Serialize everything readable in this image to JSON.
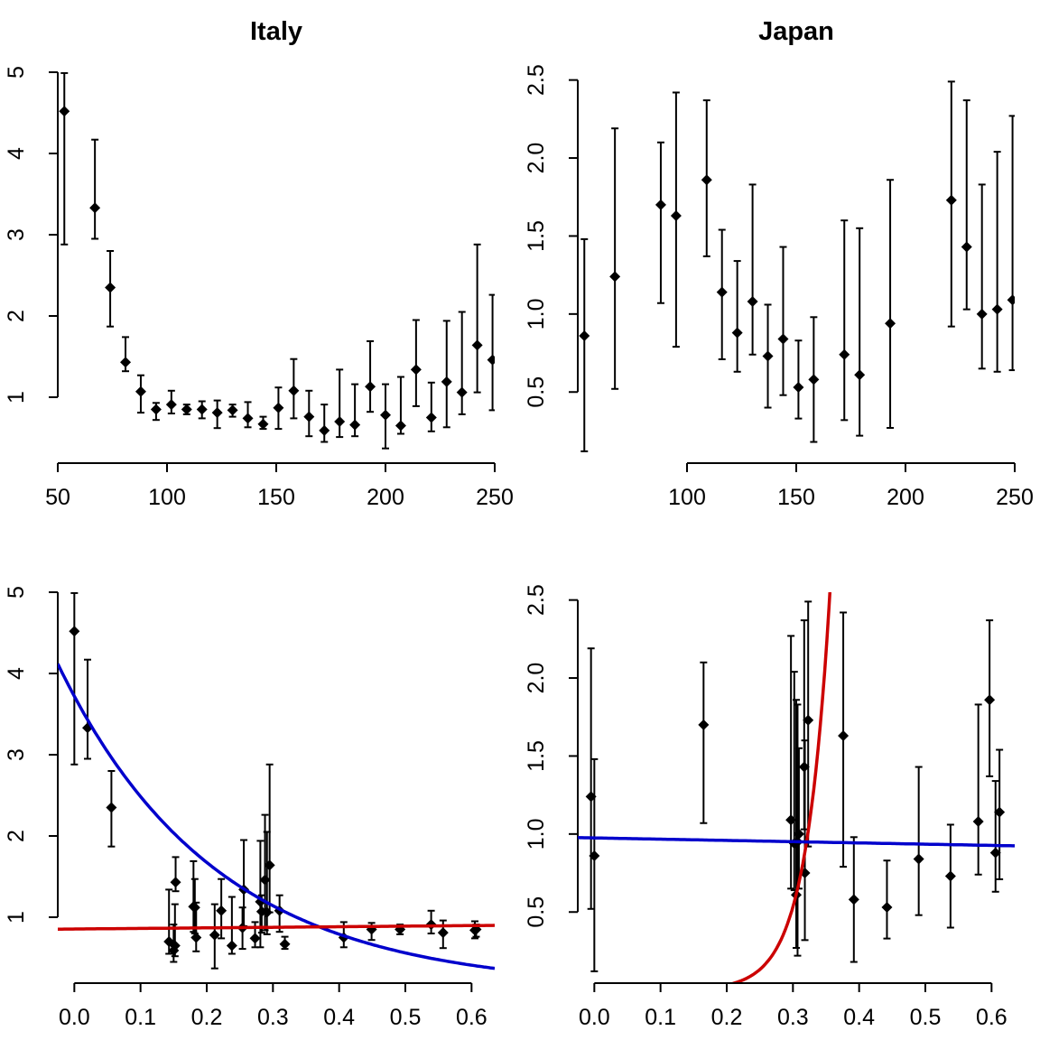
{
  "chart_data": [
    {
      "type": "scatter",
      "title": "Italy",
      "xlim": [
        50,
        250
      ],
      "ylim": [
        0.2,
        5.0
      ],
      "x_ticks": [
        50,
        100,
        150,
        200,
        250
      ],
      "x_tick_labels": [
        "50",
        "100",
        "150",
        "200",
        "250"
      ],
      "y_ticks": [
        1,
        2,
        3,
        4,
        5
      ],
      "y_tick_labels": [
        "1",
        "2",
        "3",
        "4",
        "5"
      ],
      "error_bars": true,
      "points": [
        {
          "x": 53,
          "y": 4.52,
          "lo": 2.88,
          "hi": 4.99
        },
        {
          "x": 67,
          "y": 3.33,
          "lo": 2.95,
          "hi": 4.17
        },
        {
          "x": 74,
          "y": 2.35,
          "lo": 1.87,
          "hi": 2.8
        },
        {
          "x": 81,
          "y": 1.43,
          "lo": 1.32,
          "hi": 1.74
        },
        {
          "x": 88,
          "y": 1.07,
          "lo": 0.81,
          "hi": 1.27
        },
        {
          "x": 95,
          "y": 0.85,
          "lo": 0.72,
          "hi": 0.93
        },
        {
          "x": 102,
          "y": 0.91,
          "lo": 0.8,
          "hi": 1.08
        },
        {
          "x": 109,
          "y": 0.85,
          "lo": 0.79,
          "hi": 0.91
        },
        {
          "x": 116,
          "y": 0.85,
          "lo": 0.74,
          "hi": 0.95
        },
        {
          "x": 123,
          "y": 0.81,
          "lo": 0.62,
          "hi": 0.96
        },
        {
          "x": 130,
          "y": 0.84,
          "lo": 0.76,
          "hi": 0.91
        },
        {
          "x": 137,
          "y": 0.74,
          "lo": 0.63,
          "hi": 0.94
        },
        {
          "x": 144,
          "y": 0.67,
          "lo": 0.61,
          "hi": 0.76
        },
        {
          "x": 151,
          "y": 0.87,
          "lo": 0.61,
          "hi": 1.12
        },
        {
          "x": 158,
          "y": 1.08,
          "lo": 0.74,
          "hi": 1.47
        },
        {
          "x": 165,
          "y": 0.76,
          "lo": 0.52,
          "hi": 1.08
        },
        {
          "x": 172,
          "y": 0.59,
          "lo": 0.45,
          "hi": 0.91
        },
        {
          "x": 179,
          "y": 0.7,
          "lo": 0.51,
          "hi": 1.34
        },
        {
          "x": 186,
          "y": 0.66,
          "lo": 0.52,
          "hi": 1.16
        },
        {
          "x": 193,
          "y": 1.13,
          "lo": 0.82,
          "hi": 1.69
        },
        {
          "x": 200,
          "y": 0.78,
          "lo": 0.37,
          "hi": 1.16
        },
        {
          "x": 207,
          "y": 0.65,
          "lo": 0.55,
          "hi": 1.25
        },
        {
          "x": 214,
          "y": 1.34,
          "lo": 0.89,
          "hi": 1.95
        },
        {
          "x": 221,
          "y": 0.75,
          "lo": 0.58,
          "hi": 1.18
        },
        {
          "x": 228,
          "y": 1.19,
          "lo": 0.63,
          "hi": 1.94
        },
        {
          "x": 235,
          "y": 1.06,
          "lo": 0.79,
          "hi": 2.05
        },
        {
          "x": 242,
          "y": 1.64,
          "lo": 1.06,
          "hi": 2.88
        },
        {
          "x": 249,
          "y": 1.46,
          "lo": 0.84,
          "hi": 2.26
        }
      ],
      "curves": []
    },
    {
      "type": "scatter",
      "title": "Japan",
      "xlim": [
        50,
        250
      ],
      "ylim": [
        0.05,
        2.55
      ],
      "x_ticks": [
        100,
        150,
        200,
        250
      ],
      "x_tick_labels": [
        "100",
        "150",
        "200",
        "250"
      ],
      "y_ticks": [
        0.5,
        1.0,
        1.5,
        2.0,
        2.5
      ],
      "y_tick_labels": [
        "0.5",
        "1.0",
        "1.5",
        "2.0",
        "2.5"
      ],
      "error_bars": true,
      "points": [
        {
          "x": 53,
          "y": 0.86,
          "lo": 0.12,
          "hi": 1.48
        },
        {
          "x": 67,
          "y": 1.24,
          "lo": 0.52,
          "hi": 2.19
        },
        {
          "x": 88,
          "y": 1.7,
          "lo": 1.07,
          "hi": 2.1
        },
        {
          "x": 95,
          "y": 1.63,
          "lo": 0.79,
          "hi": 2.42
        },
        {
          "x": 109,
          "y": 1.86,
          "lo": 1.37,
          "hi": 2.37
        },
        {
          "x": 116,
          "y": 1.14,
          "lo": 0.71,
          "hi": 1.54
        },
        {
          "x": 123,
          "y": 0.88,
          "lo": 0.63,
          "hi": 1.34
        },
        {
          "x": 130,
          "y": 1.08,
          "lo": 0.74,
          "hi": 1.83
        },
        {
          "x": 137,
          "y": 0.73,
          "lo": 0.4,
          "hi": 1.06
        },
        {
          "x": 144,
          "y": 0.84,
          "lo": 0.48,
          "hi": 1.43
        },
        {
          "x": 151,
          "y": 0.53,
          "lo": 0.33,
          "hi": 0.83
        },
        {
          "x": 158,
          "y": 0.58,
          "lo": 0.18,
          "hi": 0.98
        },
        {
          "x": 172,
          "y": 0.74,
          "lo": 0.32,
          "hi": 1.6
        },
        {
          "x": 179,
          "y": 0.61,
          "lo": 0.22,
          "hi": 1.55
        },
        {
          "x": 193,
          "y": 0.94,
          "lo": 0.27,
          "hi": 1.86
        },
        {
          "x": 221,
          "y": 1.73,
          "lo": 0.92,
          "hi": 2.49
        },
        {
          "x": 228,
          "y": 1.43,
          "lo": 1.03,
          "hi": 2.37
        },
        {
          "x": 235,
          "y": 1.0,
          "lo": 0.65,
          "hi": 1.83
        },
        {
          "x": 242,
          "y": 1.03,
          "lo": 0.63,
          "hi": 2.04
        },
        {
          "x": 249,
          "y": 1.09,
          "lo": 0.64,
          "hi": 2.27
        }
      ],
      "curves": []
    },
    {
      "type": "scatter",
      "title": "",
      "xlim": [
        -0.025,
        0.635
      ],
      "ylim": [
        0.2,
        5.0
      ],
      "x_ticks": [
        0.0,
        0.1,
        0.2,
        0.3,
        0.4,
        0.5,
        0.6
      ],
      "x_tick_labels": [
        "0.0",
        "0.1",
        "0.2",
        "0.3",
        "0.4",
        "0.5",
        "0.6"
      ],
      "y_ticks": [
        1,
        2,
        3,
        4,
        5
      ],
      "y_tick_labels": [
        "1",
        "2",
        "3",
        "4",
        "5"
      ],
      "error_bars": true,
      "points": [
        {
          "x": 0.0,
          "y": 4.52,
          "lo": 2.88,
          "hi": 4.99
        },
        {
          "x": 0.02,
          "y": 3.33,
          "lo": 2.95,
          "hi": 4.17
        },
        {
          "x": 0.056,
          "y": 2.35,
          "lo": 1.87,
          "hi": 2.8
        },
        {
          "x": 0.143,
          "y": 0.7,
          "lo": 0.55,
          "hi": 1.34
        },
        {
          "x": 0.15,
          "y": 0.59,
          "lo": 0.45,
          "hi": 0.91
        },
        {
          "x": 0.152,
          "y": 0.65,
          "lo": 0.52,
          "hi": 1.16
        },
        {
          "x": 0.153,
          "y": 1.43,
          "lo": 1.32,
          "hi": 1.74
        },
        {
          "x": 0.18,
          "y": 1.13,
          "lo": 0.82,
          "hi": 1.69
        },
        {
          "x": 0.182,
          "y": 1.12,
          "lo": 0.8,
          "hi": 1.47
        },
        {
          "x": 0.184,
          "y": 0.75,
          "lo": 0.58,
          "hi": 1.18
        },
        {
          "x": 0.212,
          "y": 0.78,
          "lo": 0.37,
          "hi": 1.16
        },
        {
          "x": 0.222,
          "y": 1.08,
          "lo": 0.74,
          "hi": 1.47
        },
        {
          "x": 0.238,
          "y": 0.65,
          "lo": 0.55,
          "hi": 1.25
        },
        {
          "x": 0.254,
          "y": 0.87,
          "lo": 0.61,
          "hi": 1.12
        },
        {
          "x": 0.256,
          "y": 1.34,
          "lo": 0.89,
          "hi": 1.95
        },
        {
          "x": 0.273,
          "y": 0.74,
          "lo": 0.63,
          "hi": 0.94
        },
        {
          "x": 0.281,
          "y": 1.19,
          "lo": 0.63,
          "hi": 1.94
        },
        {
          "x": 0.283,
          "y": 1.07,
          "lo": 0.81,
          "hi": 1.27
        },
        {
          "x": 0.288,
          "y": 1.46,
          "lo": 0.84,
          "hi": 2.26
        },
        {
          "x": 0.291,
          "y": 1.06,
          "lo": 0.79,
          "hi": 2.05
        },
        {
          "x": 0.295,
          "y": 1.64,
          "lo": 1.06,
          "hi": 2.88
        },
        {
          "x": 0.31,
          "y": 1.08,
          "lo": 0.82,
          "hi": 1.27
        },
        {
          "x": 0.318,
          "y": 0.67,
          "lo": 0.61,
          "hi": 0.76
        },
        {
          "x": 0.407,
          "y": 0.75,
          "lo": 0.63,
          "hi": 0.94
        },
        {
          "x": 0.449,
          "y": 0.85,
          "lo": 0.72,
          "hi": 0.93
        },
        {
          "x": 0.492,
          "y": 0.85,
          "lo": 0.79,
          "hi": 0.91
        },
        {
          "x": 0.539,
          "y": 0.91,
          "lo": 0.8,
          "hi": 1.08
        },
        {
          "x": 0.557,
          "y": 0.81,
          "lo": 0.62,
          "hi": 0.96
        },
        {
          "x": 0.605,
          "y": 0.84,
          "lo": 0.74,
          "hi": 0.95
        },
        {
          "x": 0.607,
          "y": 0.85,
          "lo": 0.76,
          "hi": 0.91
        }
      ],
      "curves": [
        {
          "color": "#0000cc",
          "kind": "exp",
          "a": 3.6,
          "b": -4.2,
          "c": 0.0,
          "d": 0.12
        },
        {
          "color": "#cc0000",
          "kind": "linear",
          "intercept": 0.855,
          "slope": 0.07
        }
      ]
    },
    {
      "type": "scatter",
      "title": "",
      "xlim": [
        -0.025,
        0.635
      ],
      "ylim": [
        0.05,
        2.55
      ],
      "x_ticks": [
        0.0,
        0.1,
        0.2,
        0.3,
        0.4,
        0.5,
        0.6
      ],
      "x_tick_labels": [
        "0.0",
        "0.1",
        "0.2",
        "0.3",
        "0.4",
        "0.5",
        "0.6"
      ],
      "y_ticks": [
        0.5,
        1.0,
        1.5,
        2.0,
        2.5
      ],
      "y_tick_labels": [
        "0.5",
        "1.0",
        "1.5",
        "2.0",
        "2.5"
      ],
      "error_bars": true,
      "points": [
        {
          "x": -0.005,
          "y": 1.24,
          "lo": 0.52,
          "hi": 2.19
        },
        {
          "x": 0.0,
          "y": 0.86,
          "lo": 0.12,
          "hi": 1.48
        },
        {
          "x": 0.165,
          "y": 1.7,
          "lo": 1.07,
          "hi": 2.1
        },
        {
          "x": 0.297,
          "y": 1.09,
          "lo": 0.65,
          "hi": 2.27
        },
        {
          "x": 0.302,
          "y": 0.94,
          "lo": 0.64,
          "hi": 2.04
        },
        {
          "x": 0.305,
          "y": 0.61,
          "lo": 0.27,
          "hi": 1.86
        },
        {
          "x": 0.307,
          "y": 0.95,
          "lo": 0.22,
          "hi": 1.83
        },
        {
          "x": 0.309,
          "y": 1.0,
          "lo": 0.65,
          "hi": 1.55
        },
        {
          "x": 0.317,
          "y": 1.43,
          "lo": 1.03,
          "hi": 2.37
        },
        {
          "x": 0.318,
          "y": 0.75,
          "lo": 0.32,
          "hi": 1.6
        },
        {
          "x": 0.323,
          "y": 1.73,
          "lo": 0.92,
          "hi": 2.49
        },
        {
          "x": 0.376,
          "y": 1.63,
          "lo": 0.79,
          "hi": 2.42
        },
        {
          "x": 0.392,
          "y": 0.58,
          "lo": 0.18,
          "hi": 0.98
        },
        {
          "x": 0.442,
          "y": 0.53,
          "lo": 0.33,
          "hi": 0.83
        },
        {
          "x": 0.49,
          "y": 0.84,
          "lo": 0.48,
          "hi": 1.43
        },
        {
          "x": 0.538,
          "y": 0.73,
          "lo": 0.4,
          "hi": 1.06
        },
        {
          "x": 0.58,
          "y": 1.08,
          "lo": 0.74,
          "hi": 1.83
        },
        {
          "x": 0.597,
          "y": 1.86,
          "lo": 1.37,
          "hi": 2.37
        },
        {
          "x": 0.606,
          "y": 0.88,
          "lo": 0.63,
          "hi": 1.34
        },
        {
          "x": 0.612,
          "y": 1.14,
          "lo": 0.71,
          "hi": 1.54
        }
      ],
      "curves": [
        {
          "color": "#cc0000",
          "kind": "exp",
          "a": 0.00012,
          "b": 28.0,
          "c": 0.0,
          "d": 0.0
        },
        {
          "color": "#0000cc",
          "kind": "linear",
          "intercept": 0.975,
          "slope": -0.08
        }
      ]
    }
  ]
}
